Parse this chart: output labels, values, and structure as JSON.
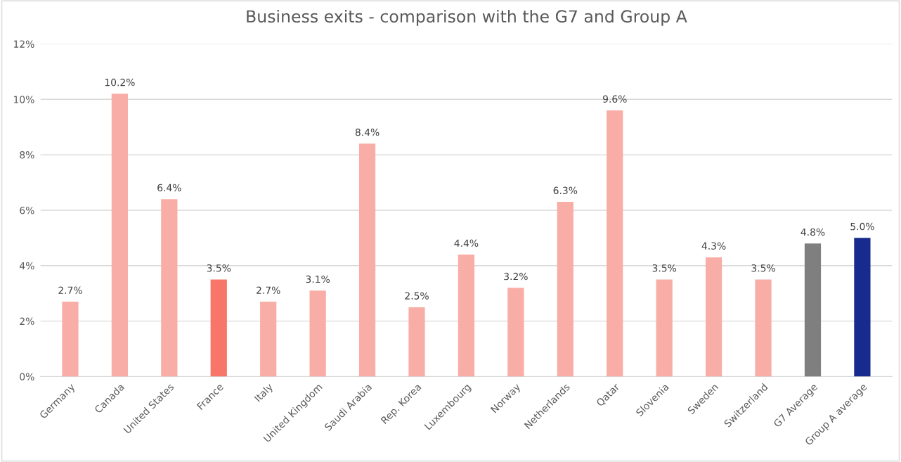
{
  "chart_data": {
    "type": "bar",
    "title": "Business exits - comparison with the G7 and Group A",
    "categories": [
      "Germany",
      "Canada",
      "United States",
      "France",
      "Italy",
      "United Kingdom",
      "Saudi Arabia",
      "Rep. Korea",
      "Luxembourg",
      "Norway",
      "Netherlands",
      "Qatar",
      "Slovenia",
      "Sweden",
      "Switzerland",
      "G7 Average",
      "Group A average"
    ],
    "values": [
      2.7,
      10.2,
      6.4,
      3.5,
      2.7,
      3.1,
      8.4,
      2.5,
      4.4,
      3.2,
      6.3,
      9.6,
      3.5,
      4.3,
      3.5,
      4.8,
      5.0
    ],
    "value_labels": [
      "2.7%",
      "10.2%",
      "6.4%",
      "3.5%",
      "2.7%",
      "3.1%",
      "8.4%",
      "2.5%",
      "4.4%",
      "3.2%",
      "6.3%",
      "9.6%",
      "3.5%",
      "4.3%",
      "3.5%",
      "4.8%",
      "5.0%"
    ],
    "colors": [
      "#f8ada6",
      "#f8ada6",
      "#f8ada6",
      "#f87669",
      "#f8ada6",
      "#f8ada6",
      "#f8ada6",
      "#f8ada6",
      "#f8ada6",
      "#f8ada6",
      "#f8ada6",
      "#f8ada6",
      "#f8ada6",
      "#f8ada6",
      "#f8ada6",
      "#7f7f7f",
      "#172a8d"
    ],
    "ylim": [
      0,
      12
    ],
    "yticks": [
      {
        "value": 0,
        "label": "0%"
      },
      {
        "value": 2,
        "label": "2%"
      },
      {
        "value": 4,
        "label": "4%"
      },
      {
        "value": 6,
        "label": "6%"
      },
      {
        "value": 8,
        "label": "8%"
      },
      {
        "value": 10,
        "label": "10%"
      },
      {
        "value": 12,
        "label": "12%"
      }
    ],
    "grid": "y",
    "legend": false
  }
}
